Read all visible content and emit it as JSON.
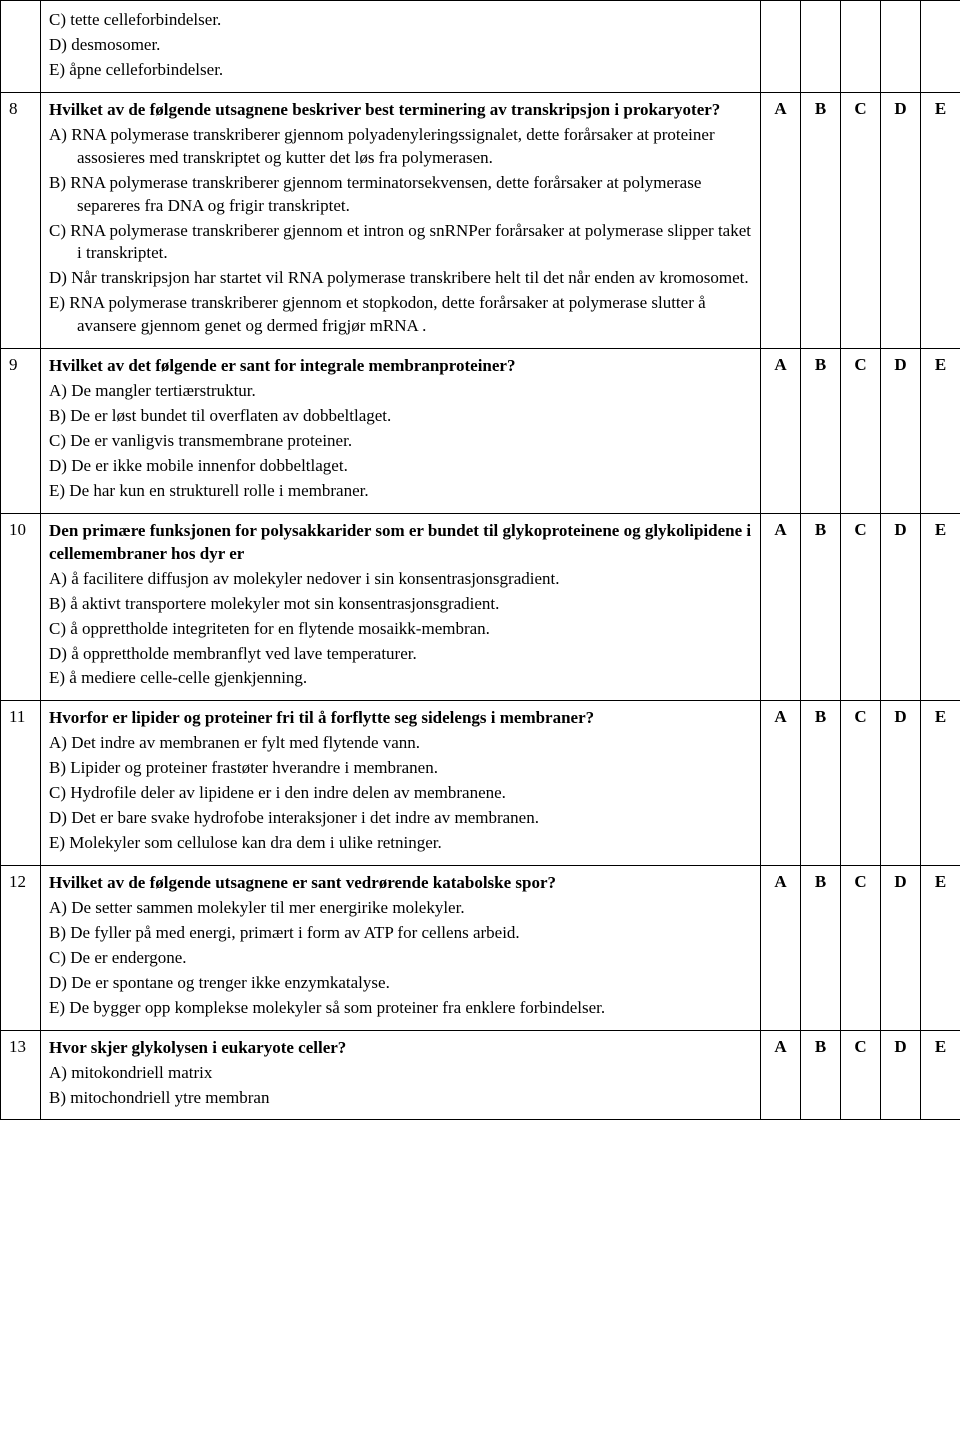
{
  "answer_labels": [
    "A",
    "B",
    "C",
    "D",
    "E"
  ],
  "rows": [
    {
      "num": "",
      "show_opts": false,
      "stem": "",
      "choices": [
        "C) tette celleforbindelser.",
        "D) desmosomer.",
        "E) åpne celleforbindelser."
      ]
    },
    {
      "num": "8",
      "show_opts": true,
      "stem": "Hvilket av de følgende utsagnene beskriver best terminering av transkripsjon i prokaryoter?",
      "choices": [
        "A) RNA polymerase transkriberer gjennom polyadenyleringssignalet, dette forårsaker at proteiner assosieres med transkriptet og kutter det løs fra polymerasen.",
        "B) RNA polymerase transkriberer gjennom terminatorsekvensen, dette forårsaker at polymerase separeres fra DNA og frigir transkriptet.",
        "C) RNA polymerase transkriberer gjennom et intron og snRNPer forårsaker at polymerase slipper taket i transkriptet.",
        "D) Når transkripsjon har startet vil RNA polymerase transkribere helt til det når enden av kromosomet.",
        "E) RNA polymerase transkriberer gjennom et stopkodon,  dette forårsaker at polymerase slutter å avansere gjennom genet og dermed frigjør mRNA ."
      ]
    },
    {
      "num": "9",
      "show_opts": true,
      "stem": "Hvilket av det følgende er sant for integrale membranproteiner?",
      "choices": [
        "A) De mangler tertiærstruktur.",
        "B) De er løst bundet til overflaten av dobbeltlaget.",
        "C) De er vanligvis transmembrane proteiner.",
        "D) De er ikke mobile innenfor dobbeltlaget.",
        "E) De har kun en strukturell rolle i membraner."
      ]
    },
    {
      "num": "10",
      "show_opts": true,
      "stem": "Den primære funksjonen for polysakkarider som er bundet til glykoproteinene og glykolipidene i cellemembraner hos dyr er",
      "choices": [
        "A) å facilitere diffusjon av molekyler nedover i sin konsentrasjonsgradient.",
        "B)  å aktivt transportere molekyler mot sin konsentrasjonsgradient.",
        "C) å opprettholde integriteten for en flytende mosaikk-membran.",
        "D) å opprettholde membranflyt ved lave temperaturer.",
        "E) å mediere celle-celle gjenkjenning."
      ]
    },
    {
      "num": "11",
      "show_opts": true,
      "stem": "Hvorfor er lipider og proteiner fri til å forflytte seg sidelengs i membraner?",
      "choices": [
        "A) Det indre av membranen er fylt med flytende vann.",
        "B) Lipider og proteiner frastøter hverandre i membranen.",
        "C) Hydrofile deler av lipidene er i den indre delen av membranene.",
        "D) Det er bare svake hydrofobe interaksjoner i det indre av membranen.",
        "E) Molekyler som cellulose kan dra dem i ulike retninger."
      ]
    },
    {
      "num": "12",
      "show_opts": true,
      "stem": "Hvilket av de følgende utsagnene er sant vedrørende katabolske spor?",
      "choices": [
        "A) De setter sammen molekyler til mer energirike molekyler.",
        "B) De fyller på med energi, primært i form av ATP for cellens arbeid.",
        "C) De er endergone.",
        "D) De er spontane og trenger ikke enzymkatalyse.",
        "E) De bygger opp komplekse molekyler så som proteiner fra enklere forbindelser."
      ]
    },
    {
      "num": "13",
      "show_opts": true,
      "stem": "Hvor skjer glykolysen i eukaryote celler?",
      "choices": [
        "A) mitokondriell matrix",
        "B) mitochondriell ytre membran"
      ]
    }
  ]
}
